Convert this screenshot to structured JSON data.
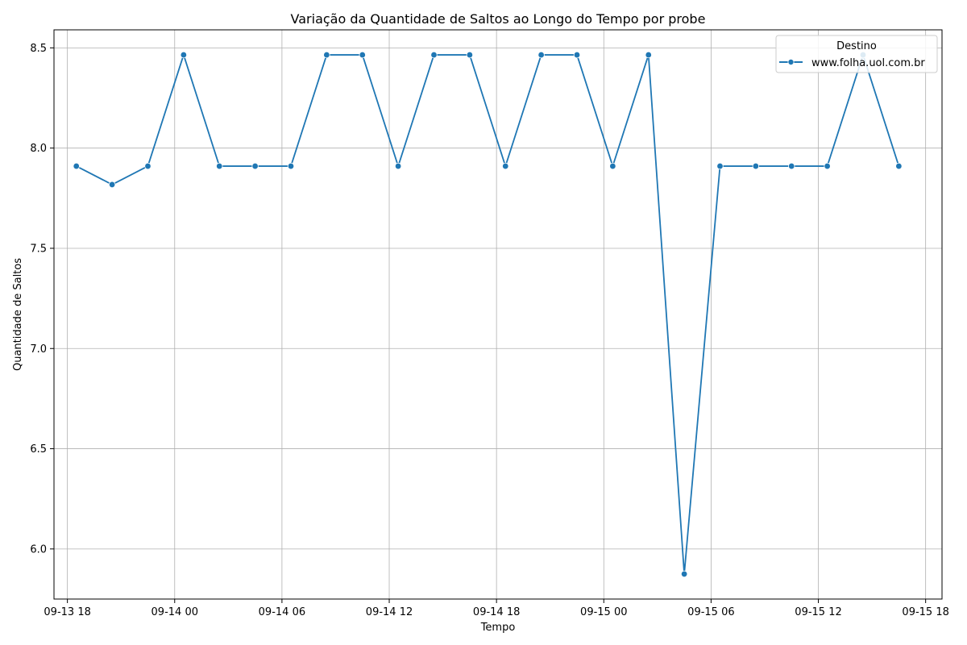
{
  "chart_data": {
    "type": "line",
    "title": "Variação da Quantidade de Saltos ao Longo do Tempo por probe",
    "xlabel": "Tempo",
    "ylabel": "Quantidade de Saltos",
    "x_ticks": [
      "09-13 18",
      "09-14 00",
      "09-14 06",
      "09-14 12",
      "09-14 18",
      "09-15 00",
      "09-15 06",
      "09-15 12",
      "09-15 18"
    ],
    "y_ticks": [
      "6.0",
      "6.5",
      "7.0",
      "7.5",
      "8.0",
      "8.5"
    ],
    "ylim": [
      5.75,
      8.59
    ],
    "xlim": [
      "2024-09-13 17:15",
      "2024-09-15 18:55"
    ],
    "grid": true,
    "legend": {
      "title": "Destino",
      "placement": "top-right"
    },
    "colors": {
      "series": "#1f77b4",
      "grid": "#b0b0b0"
    },
    "series": [
      {
        "name": "www.folha.uol.com.br",
        "points": [
          {
            "x": "2024-09-13 18:30",
            "y": 7.91
          },
          {
            "x": "2024-09-13 20:30",
            "y": 7.818
          },
          {
            "x": "2024-09-13 22:30",
            "y": 7.91
          },
          {
            "x": "2024-09-14 00:30",
            "y": 8.465
          },
          {
            "x": "2024-09-14 02:30",
            "y": 7.91
          },
          {
            "x": "2024-09-14 04:30",
            "y": 7.91
          },
          {
            "x": "2024-09-14 06:30",
            "y": 7.91
          },
          {
            "x": "2024-09-14 08:30",
            "y": 8.465
          },
          {
            "x": "2024-09-14 10:30",
            "y": 8.465
          },
          {
            "x": "2024-09-14 12:30",
            "y": 7.91
          },
          {
            "x": "2024-09-14 14:30",
            "y": 8.465
          },
          {
            "x": "2024-09-14 16:30",
            "y": 8.465
          },
          {
            "x": "2024-09-14 18:30",
            "y": 7.91
          },
          {
            "x": "2024-09-14 20:30",
            "y": 8.465
          },
          {
            "x": "2024-09-14 22:30",
            "y": 8.465
          },
          {
            "x": "2024-09-15 00:30",
            "y": 7.91
          },
          {
            "x": "2024-09-15 02:30",
            "y": 8.465
          },
          {
            "x": "2024-09-15 04:30",
            "y": 5.875
          },
          {
            "x": "2024-09-15 06:30",
            "y": 7.91
          },
          {
            "x": "2024-09-15 08:30",
            "y": 7.91
          },
          {
            "x": "2024-09-15 10:30",
            "y": 7.91
          },
          {
            "x": "2024-09-15 12:30",
            "y": 7.91
          },
          {
            "x": "2024-09-15 14:30",
            "y": 8.465
          },
          {
            "x": "2024-09-15 16:30",
            "y": 7.91
          }
        ]
      }
    ]
  }
}
